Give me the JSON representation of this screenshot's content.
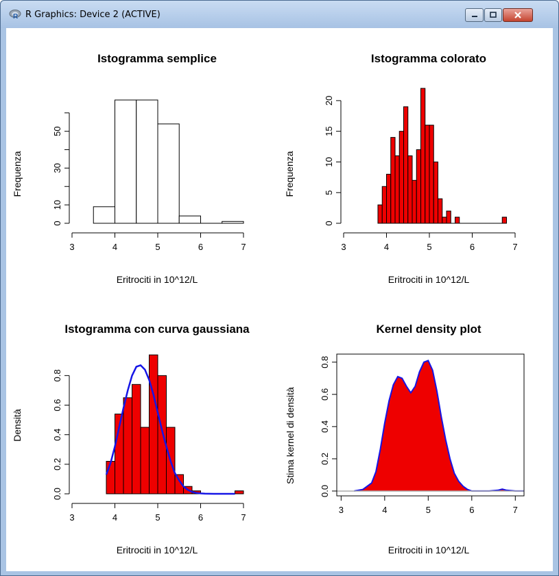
{
  "window": {
    "title": "R Graphics: Device 2 (ACTIVE)",
    "icon": "r-logo-icon",
    "buttons": [
      "minimize-icon",
      "maximize-icon",
      "close-icon"
    ]
  },
  "colors": {
    "fill": "#ee0000",
    "curve": "#1515e6",
    "frame": "#000000"
  },
  "chart_data": [
    {
      "type": "bar",
      "title": "Istogramma semplice",
      "xlabel": "Eritrociti in 10^12/L",
      "ylabel": "Frequenza",
      "xlim": [
        3,
        7
      ],
      "ylim": [
        0,
        67
      ],
      "x_ticks": [
        "3",
        "4",
        "5",
        "6",
        "7"
      ],
      "y_ticks": [
        "0",
        "10",
        "30",
        "50"
      ],
      "y_tick_values": [
        0,
        10,
        30,
        50
      ],
      "y_minor_ticks": [
        20,
        40,
        60
      ],
      "bins": [
        [
          3.5,
          4.0
        ],
        [
          4.0,
          4.5
        ],
        [
          4.5,
          5.0
        ],
        [
          5.0,
          5.5
        ],
        [
          5.5,
          6.0
        ],
        [
          6.0,
          6.5
        ],
        [
          6.5,
          7.0
        ]
      ],
      "values": [
        9,
        67,
        67,
        54,
        4,
        0,
        1
      ],
      "fill": "#ffffff"
    },
    {
      "type": "bar",
      "title": "Istogramma colorato",
      "xlabel": "Eritrociti in 10^12/L",
      "ylabel": "Frequenza",
      "xlim": [
        3,
        7
      ],
      "ylim": [
        0,
        22
      ],
      "x_ticks": [
        "3",
        "4",
        "5",
        "6",
        "7"
      ],
      "y_ticks": [
        "0",
        "5",
        "10",
        "15",
        "20"
      ],
      "y_tick_values": [
        0,
        5,
        10,
        15,
        20
      ],
      "bin_start": 3.8,
      "bin_width": 0.1,
      "values": [
        3,
        6,
        8,
        14,
        11,
        15,
        19,
        11,
        7,
        12,
        22,
        16,
        16,
        10,
        4,
        1,
        2,
        0,
        1,
        0,
        0,
        0,
        0,
        0,
        0,
        0,
        0,
        0,
        0,
        1
      ],
      "fill": "#ee0000"
    },
    {
      "type": "bar",
      "title": "Istogramma con curva gaussiana",
      "xlabel": "Eritrociti in 10^12/L",
      "ylabel": "Densità",
      "xlim": [
        3,
        7
      ],
      "ylim": [
        0,
        0.95
      ],
      "x_ticks": [
        "3",
        "4",
        "5",
        "6",
        "7"
      ],
      "y_ticks": [
        "0.0",
        "0.2",
        "0.4",
        "0.6",
        "0.8"
      ],
      "y_tick_values": [
        0,
        0.2,
        0.4,
        0.6,
        0.8
      ],
      "bin_start": 3.8,
      "bin_width": 0.2,
      "values": [
        0.22,
        0.54,
        0.65,
        0.74,
        0.45,
        0.94,
        0.8,
        0.45,
        0.13,
        0.05,
        0.02,
        0.0,
        0.0,
        0.0,
        0.0,
        0.02
      ],
      "fill": "#ee0000",
      "curve": {
        "name": "curva gaussiana",
        "x": [
          3.8,
          3.9,
          4.0,
          4.1,
          4.2,
          4.3,
          4.4,
          4.5,
          4.6,
          4.7,
          4.8,
          4.9,
          5.0,
          5.1,
          5.2,
          5.3,
          5.4,
          5.5,
          5.6,
          5.7,
          5.8,
          5.9,
          6.0,
          6.1,
          6.2,
          6.3,
          6.4,
          6.5,
          6.6,
          6.7,
          6.8
        ],
        "y": [
          0.13,
          0.21,
          0.32,
          0.45,
          0.58,
          0.7,
          0.8,
          0.86,
          0.87,
          0.84,
          0.77,
          0.67,
          0.55,
          0.43,
          0.32,
          0.22,
          0.14,
          0.09,
          0.05,
          0.027,
          0.013,
          0.006,
          0.003,
          0.001,
          0.0005,
          0.0002,
          0.0,
          0.0,
          0.0,
          0.0,
          0.0
        ]
      }
    },
    {
      "type": "area",
      "title": "Kernel density plot",
      "xlabel": "Eritrociti in 10^12/L",
      "ylabel": "Stima kernel di densità",
      "xlim": [
        2.9,
        7.2
      ],
      "ylim": [
        -0.03,
        0.85
      ],
      "x_ticks": [
        "3",
        "4",
        "5",
        "6",
        "7"
      ],
      "y_ticks": [
        "0.0",
        "0.2",
        "0.4",
        "0.6",
        "0.8"
      ],
      "y_tick_values": [
        0,
        0.2,
        0.4,
        0.6,
        0.8
      ],
      "box": true,
      "x": [
        3.3,
        3.5,
        3.7,
        3.8,
        3.9,
        4.0,
        4.1,
        4.2,
        4.3,
        4.4,
        4.5,
        4.6,
        4.7,
        4.8,
        4.9,
        5.0,
        5.1,
        5.2,
        5.3,
        5.4,
        5.5,
        5.6,
        5.7,
        5.8,
        5.9,
        6.0,
        6.2,
        6.4,
        6.6,
        6.7,
        6.8,
        7.0,
        7.2
      ],
      "y": [
        0.0,
        0.01,
        0.05,
        0.12,
        0.26,
        0.42,
        0.56,
        0.66,
        0.71,
        0.7,
        0.65,
        0.61,
        0.65,
        0.74,
        0.8,
        0.81,
        0.75,
        0.62,
        0.46,
        0.32,
        0.2,
        0.11,
        0.06,
        0.03,
        0.01,
        0.0,
        0.0,
        0.0,
        0.005,
        0.012,
        0.005,
        0.0,
        0.0
      ],
      "fill": "#ee0000"
    }
  ]
}
